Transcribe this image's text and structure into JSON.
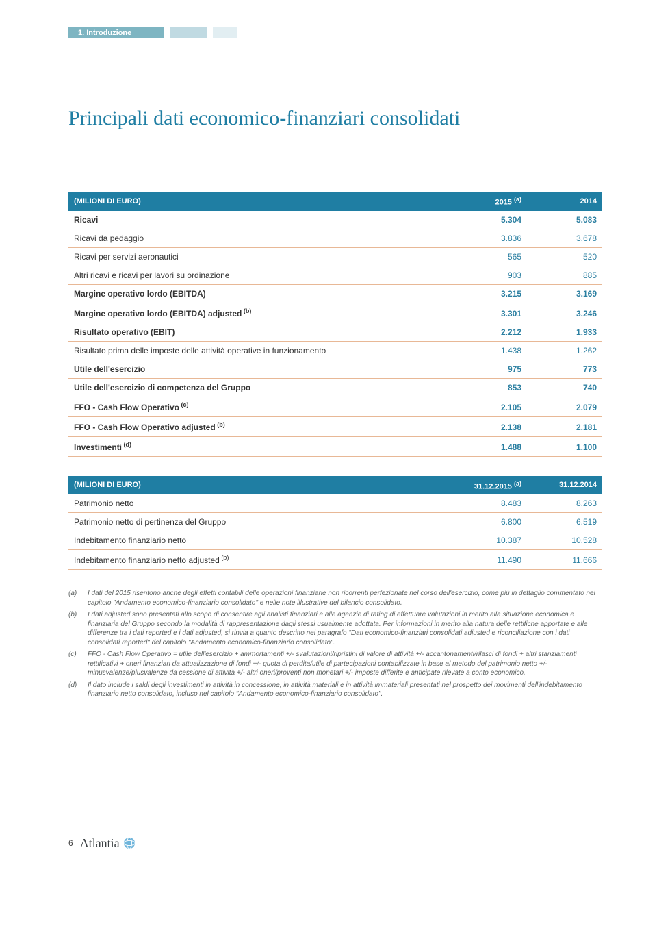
{
  "header": {
    "chapter_label": "1. Introduzione"
  },
  "title": "Principali dati economico-finanziari consolidati",
  "table1": {
    "header_label": "(MILIONI DI EURO)",
    "col1": "2015",
    "col1_sup": "(a)",
    "col2": "2014",
    "rows": [
      {
        "label": "Ricavi",
        "v1": "5.304",
        "v2": "5.083",
        "bold": true
      },
      {
        "label": "Ricavi da pedaggio",
        "v1": "3.836",
        "v2": "3.678"
      },
      {
        "label": "Ricavi per servizi aeronautici",
        "v1": "565",
        "v2": "520"
      },
      {
        "label": "Altri ricavi e ricavi per lavori su ordinazione",
        "v1": "903",
        "v2": "885"
      },
      {
        "label": "Margine operativo lordo (EBITDA)",
        "v1": "3.215",
        "v2": "3.169",
        "bold": true
      },
      {
        "label": "Margine operativo lordo (EBITDA) adjusted",
        "sup": "(b)",
        "v1": "3.301",
        "v2": "3.246",
        "bold": true
      },
      {
        "label": "Risultato operativo (EBIT)",
        "v1": "2.212",
        "v2": "1.933",
        "bold": true
      },
      {
        "label": "Risultato prima delle imposte delle attività operative in funzionamento",
        "v1": "1.438",
        "v2": "1.262"
      },
      {
        "label": "Utile dell'esercizio",
        "v1": "975",
        "v2": "773",
        "bold": true
      },
      {
        "label": "Utile dell'esercizio di competenza del Gruppo",
        "v1": "853",
        "v2": "740",
        "bold": true
      },
      {
        "label": "FFO - Cash Flow Operativo",
        "sup": "(c)",
        "v1": "2.105",
        "v2": "2.079",
        "bold": true
      },
      {
        "label": "FFO - Cash Flow Operativo adjusted",
        "sup": "(b)",
        "v1": "2.138",
        "v2": "2.181",
        "bold": true
      },
      {
        "label": "Investimenti",
        "sup": "(d)",
        "v1": "1.488",
        "v2": "1.100",
        "bold": true
      }
    ]
  },
  "table2": {
    "header_label": "(MILIONI DI EURO)",
    "col1": "31.12.2015",
    "col1_sup": "(a)",
    "col2": "31.12.2014",
    "rows": [
      {
        "label": "Patrimonio netto",
        "v1": "8.483",
        "v2": "8.263"
      },
      {
        "label": "Patrimonio netto di pertinenza del Gruppo",
        "v1": "6.800",
        "v2": "6.519"
      },
      {
        "label": "Indebitamento finanziario netto",
        "v1": "10.387",
        "v2": "10.528"
      },
      {
        "label": "Indebitamento finanziario netto adjusted",
        "sup": "(b)",
        "v1": "11.490",
        "v2": "11.666"
      }
    ]
  },
  "footnotes": [
    {
      "tag": "(a)",
      "text": "I dati del 2015 risentono anche degli effetti contabili delle operazioni finanziarie non ricorrenti perfezionate nel corso dell'esercizio, come più in dettaglio commentato nel capitolo \"Andamento economico-finanziario consolidato\" e nelle note illustrative del bilancio consolidato."
    },
    {
      "tag": "(b)",
      "text": "I dati adjusted sono presentati allo scopo di consentire agli analisti finanziari e alle agenzie di rating di effettuare valutazioni in merito alla situazione economica e finanziaria del Gruppo secondo la modalità di rappresentazione dagli stessi usualmente adottata. Per informazioni in merito alla natura delle rettifiche apportate e alle differenze tra i dati reported e i dati adjusted, si rinvia a quanto descritto nel paragrafo \"Dati economico-finanziari consolidati adjusted e riconciliazione con i dati consolidati reported\" del capitolo \"Andamento economico-finanziario consolidato\"."
    },
    {
      "tag": "(c)",
      "text": "FFO - Cash Flow Operativo = utile dell'esercizio + ammortamenti +/- svalutazioni/ripristini di valore di attività +/- accantonamenti/rilasci di fondi + altri stanziamenti rettificativi + oneri finanziari da attualizzazione di fondi +/- quota di perdita/utile di partecipazioni contabilizzate in base al metodo del patrimonio netto +/- minusvalenze/plusvalenze da cessione di attività +/- altri oneri/proventi non monetari +/- imposte differite e anticipate rilevate a conto economico."
    },
    {
      "tag": "(d)",
      "text": "Il dato include i saldi degli investimenti in attività in concessione, in attività materiali e in attività immateriali presentati nel prospetto dei movimenti dell'indebitamento finanziario netto consolidato, incluso nel capitolo \"Andamento economico-finanziario consolidato\"."
    }
  ],
  "footer": {
    "page_number": "6",
    "brand": "Atlantia"
  }
}
